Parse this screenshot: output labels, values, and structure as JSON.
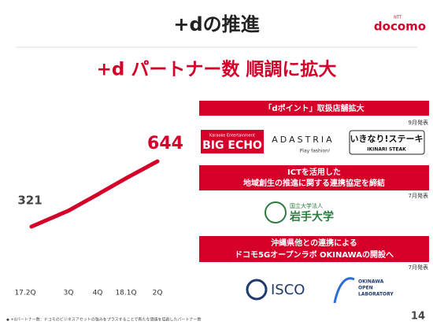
{
  "header": {
    "title": "+dの推進",
    "logo_small": "NTT",
    "logo": "docomo",
    "subtitle": "+d パートナー数 順調に拡大"
  },
  "chart_data": {
    "type": "line",
    "categories": [
      "17.2Q",
      "3Q",
      "4Q",
      "18.1Q",
      "2Q"
    ],
    "series": [
      {
        "name": "+dパートナー数",
        "color": "#d4002a",
        "values": [
          321,
          400,
          480,
          560,
          644
        ]
      }
    ]
  },
  "panels": [
    {
      "banner": [
        "「dポイント」取扱店舗拡大"
      ],
      "date": "9月発表",
      "logos": [
        "Karaoke Entertainment",
        "BIG ECHO",
        "ADASTRIA",
        "Play fashion!",
        "いきなり!ステーキ",
        "IKINARI STEAK"
      ]
    },
    {
      "banner": [
        "ICTを活用した",
        "地域創生の推進に関する連携協定を締結"
      ],
      "date": "7月発表",
      "logos": [
        "国立大学法人",
        "岩手大学"
      ]
    },
    {
      "banner": [
        "沖縄県他との連携による",
        "ドコモ5Gオープンラボ OKINAWAの開設へ"
      ],
      "date": "7月発表",
      "logos": [
        "ISCO",
        "OKINAWA",
        "OPEN",
        "LABORATORY"
      ]
    }
  ],
  "footer": {
    "note": "◆ +dパートナー数：ドコモのビジネスアセットの強みをプラスすることで新たな価値を協創したパートナー数",
    "page": "14"
  }
}
